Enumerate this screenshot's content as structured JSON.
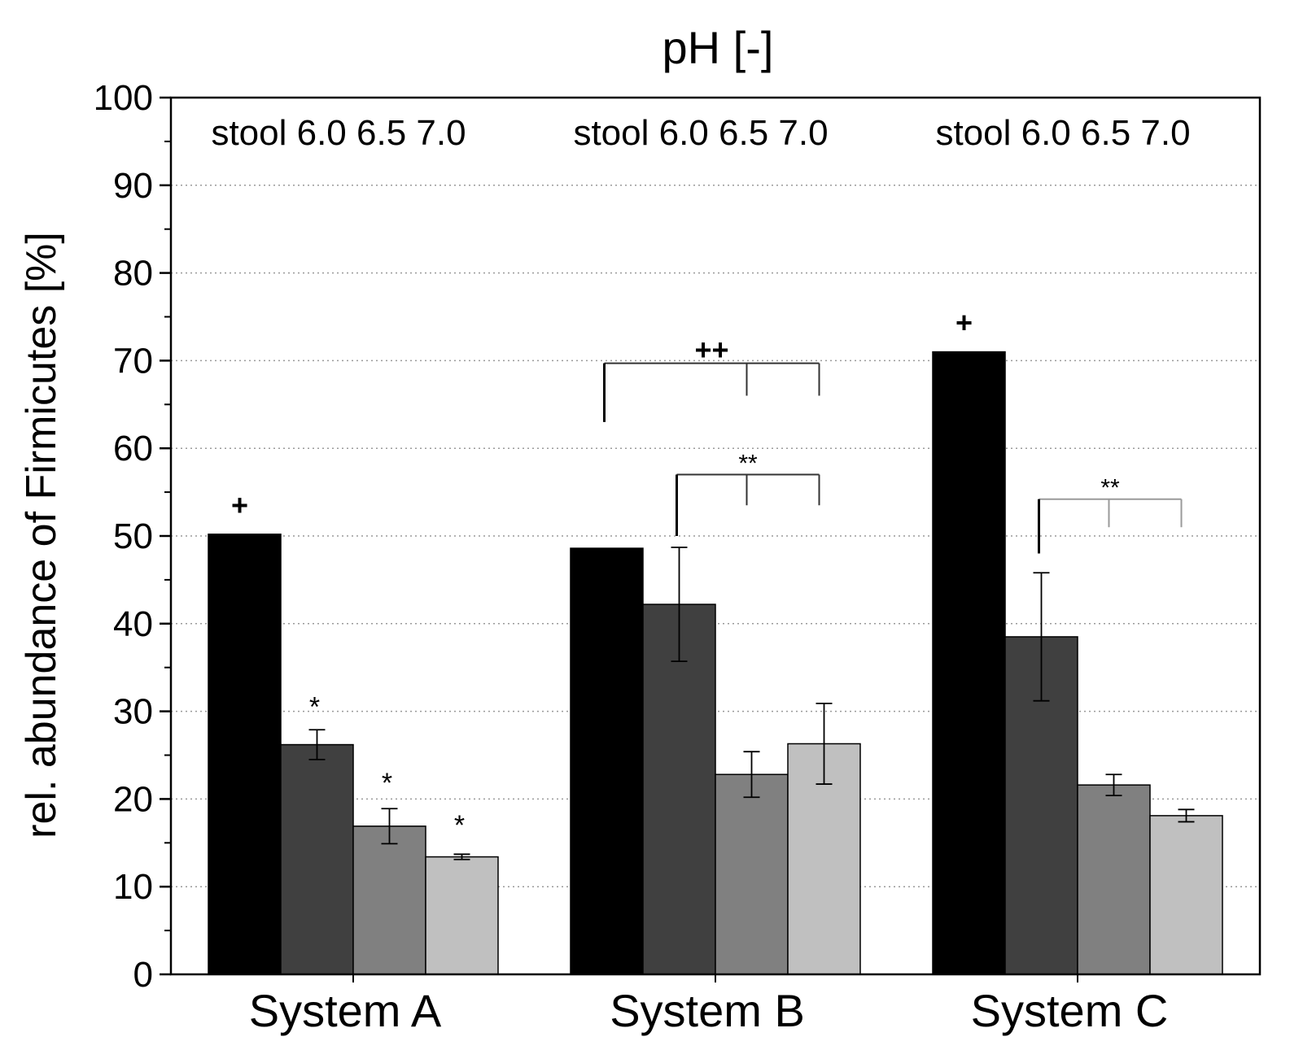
{
  "chart_data": {
    "type": "bar",
    "title": "pH [-]",
    "xlabel": "",
    "ylabel": "rel. abundance of Firmicutes [%]",
    "ylim": [
      0,
      100
    ],
    "yticks": [
      0,
      10,
      20,
      30,
      40,
      50,
      60,
      70,
      80,
      90,
      100
    ],
    "grid": true,
    "categories": [
      "System A",
      "System B",
      "System C"
    ],
    "group_labels": [
      "stool 6.0 6.5 7.0",
      "stool 6.0 6.5 7.0",
      "stool 6.0 6.5 7.0"
    ],
    "series": [
      {
        "name": "stool",
        "color": "#000000",
        "values": [
          50.2,
          48.6,
          71.0
        ],
        "errors": [
          0,
          0,
          0
        ]
      },
      {
        "name": "6.0",
        "color": "#404040",
        "values": [
          26.2,
          42.2,
          38.5
        ],
        "errors": [
          1.7,
          6.5,
          7.3
        ]
      },
      {
        "name": "6.5",
        "color": "#808080",
        "values": [
          16.9,
          22.8,
          21.6
        ],
        "errors": [
          2.0,
          2.6,
          1.2
        ]
      },
      {
        "name": "7.0",
        "color": "#c0c0c0",
        "values": [
          13.4,
          26.3,
          18.1
        ],
        "errors": [
          0.3,
          4.6,
          0.7
        ]
      }
    ],
    "annotations": [
      {
        "text": "+",
        "group": 0,
        "bar": 0,
        "y": 53.5
      },
      {
        "text": "*",
        "group": 0,
        "bar": 1,
        "y": 31.5
      },
      {
        "text": "*",
        "group": 0,
        "bar": 2,
        "y": 22.8
      },
      {
        "text": "*",
        "group": 0,
        "bar": 3,
        "y": 18.0
      },
      {
        "text": "+",
        "group": 2,
        "bar": 0,
        "y": 74.3
      }
    ],
    "brackets": [
      {
        "text": "++",
        "group": 1,
        "from_bar": 0,
        "to_bars": [
          2,
          3
        ],
        "top": 69.7,
        "left_bottom": 63.0,
        "right_bottom": 66.0
      },
      {
        "text": "**",
        "group": 1,
        "from_bar": 1,
        "to_bars": [
          2,
          3
        ],
        "top": 57.0,
        "left_bottom": 50.0,
        "right_bottom": 53.5
      },
      {
        "text": "**",
        "group": 2,
        "from_bar": 1,
        "to_bars": [
          2,
          3
        ],
        "top": 54.2,
        "left_bottom": 48.0,
        "right_bottom": 51.0
      }
    ]
  }
}
